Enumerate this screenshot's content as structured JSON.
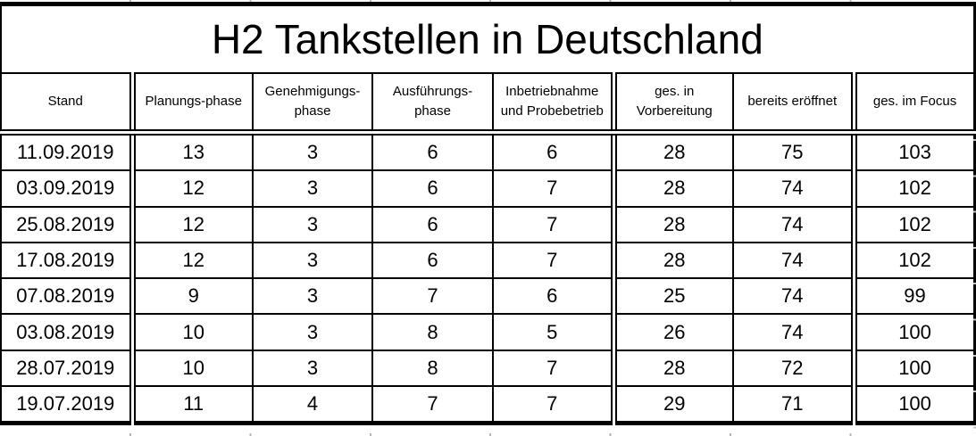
{
  "chart_data": {
    "type": "table",
    "title": "H2 Tankstellen in Deutschland",
    "columns": [
      "Stand",
      "Planungs-phase",
      "Genehmigungs-\nphase",
      "Ausführungs-\nphase",
      "Inbetriebnahme\nund Probebetrieb",
      "ges. in\nVorbereitung",
      "bereits eröffnet",
      "ges. im Focus"
    ],
    "rows": [
      [
        "11.09.2019",
        "13",
        "3",
        "6",
        "6",
        "28",
        "75",
        "103"
      ],
      [
        "03.09.2019",
        "12",
        "3",
        "6",
        "7",
        "28",
        "74",
        "102"
      ],
      [
        "25.08.2019",
        "12",
        "3",
        "6",
        "7",
        "28",
        "74",
        "102"
      ],
      [
        "17.08.2019",
        "12",
        "3",
        "6",
        "7",
        "28",
        "74",
        "102"
      ],
      [
        "07.08.2019",
        "9",
        "3",
        "7",
        "6",
        "25",
        "74",
        "99"
      ],
      [
        "03.08.2019",
        "10",
        "3",
        "8",
        "5",
        "26",
        "74",
        "100"
      ],
      [
        "28.07.2019",
        "10",
        "3",
        "8",
        "7",
        "28",
        "72",
        "100"
      ],
      [
        "19.07.2019",
        "11",
        "4",
        "7",
        "7",
        "29",
        "71",
        "100"
      ]
    ],
    "layout_hints": {
      "double_rule_before_columns": [
        1,
        5,
        7
      ],
      "double_rule_below_header": true,
      "grid_color": "#000000",
      "background_color": "#ffffff",
      "text_color": "#000000"
    }
  }
}
